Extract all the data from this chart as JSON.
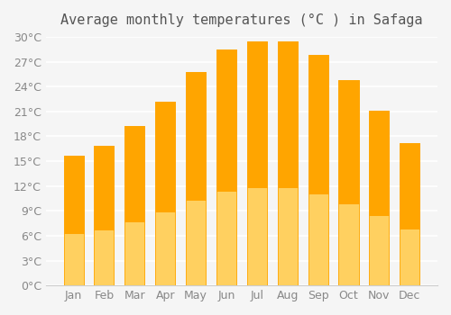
{
  "title": "Average monthly temperatures (°C ) in Safaga",
  "months": [
    "Jan",
    "Feb",
    "Mar",
    "Apr",
    "May",
    "Jun",
    "Jul",
    "Aug",
    "Sep",
    "Oct",
    "Nov",
    "Dec"
  ],
  "temperatures": [
    15.7,
    16.8,
    19.2,
    22.2,
    25.7,
    28.5,
    29.5,
    29.5,
    27.8,
    24.8,
    21.1,
    17.2
  ],
  "bar_color_top": "#FFA500",
  "bar_color_bottom": "#FFD060",
  "ylim": [
    0,
    30
  ],
  "ytick_step": 3,
  "background_color": "#f5f5f5",
  "grid_color": "#ffffff",
  "title_fontsize": 11,
  "tick_fontsize": 9
}
